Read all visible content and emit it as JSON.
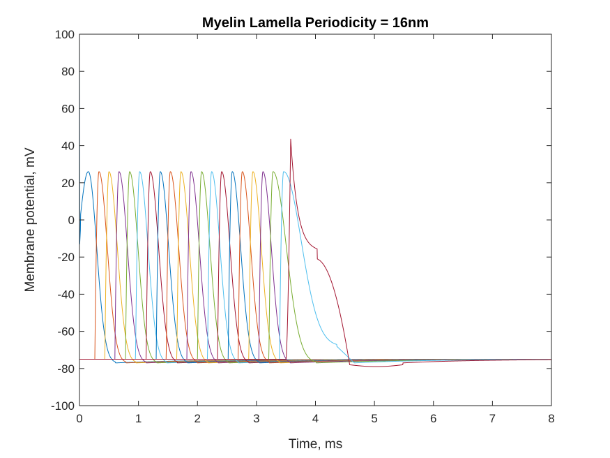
{
  "chart_data": {
    "type": "line",
    "title": "Myelin Lamella Periodicity = 16nm",
    "xlabel": "Time, ms",
    "ylabel": "Membrane potential, mV",
    "xlim": [
      0,
      8
    ],
    "ylim": [
      -100,
      100
    ],
    "xticks": [
      0,
      1,
      2,
      3,
      4,
      5,
      6,
      7,
      8
    ],
    "yticks": [
      -100,
      -80,
      -60,
      -40,
      -20,
      0,
      20,
      40,
      60,
      80,
      100
    ],
    "xtick_labels": [
      "0",
      "1",
      "2",
      "3",
      "4",
      "5",
      "6",
      "7",
      "8"
    ],
    "ytick_labels": [
      "-100",
      "-80",
      "-60",
      "-40",
      "-20",
      "0",
      "20",
      "40",
      "60",
      "80",
      "100"
    ],
    "grid": false,
    "legend": "none",
    "resting_potential": -75,
    "colors": [
      "#0072BD",
      "#D95319",
      "#EDB120",
      "#7E2F8E",
      "#77AC30",
      "#4DBEEE",
      "#A2142F"
    ],
    "series": [
      {
        "color": "#0072BD",
        "peak_time": 0.15,
        "peak": 26,
        "initial_spike": true
      },
      {
        "color": "#D95319",
        "peak_time": 0.33,
        "peak": 26
      },
      {
        "color": "#EDB120",
        "peak_time": 0.5,
        "peak": 26
      },
      {
        "color": "#7E2F8E",
        "peak_time": 0.67,
        "peak": 26
      },
      {
        "color": "#77AC30",
        "peak_time": 0.85,
        "peak": 26
      },
      {
        "color": "#4DBEEE",
        "peak_time": 1.02,
        "peak": 26
      },
      {
        "color": "#A2142F",
        "peak_time": 1.2,
        "peak": 26
      },
      {
        "color": "#0072BD",
        "peak_time": 1.37,
        "peak": 26
      },
      {
        "color": "#D95319",
        "peak_time": 1.54,
        "peak": 26
      },
      {
        "color": "#EDB120",
        "peak_time": 1.72,
        "peak": 26
      },
      {
        "color": "#7E2F8E",
        "peak_time": 1.89,
        "peak": 26
      },
      {
        "color": "#77AC30",
        "peak_time": 2.07,
        "peak": 26
      },
      {
        "color": "#4DBEEE",
        "peak_time": 2.24,
        "peak": 26
      },
      {
        "color": "#A2142F",
        "peak_time": 2.41,
        "peak": 26
      },
      {
        "color": "#0072BD",
        "peak_time": 2.59,
        "peak": 26
      },
      {
        "color": "#D95319",
        "peak_time": 2.76,
        "peak": 26
      },
      {
        "color": "#EDB120",
        "peak_time": 2.94,
        "peak": 26
      },
      {
        "color": "#7E2F8E",
        "peak_time": 3.11,
        "peak": 26
      },
      {
        "color": "#77AC30",
        "peak_time": 3.28,
        "peak": 26,
        "slow_tail": true
      },
      {
        "color": "#4DBEEE",
        "peak_time": 3.46,
        "peak": 26,
        "slow_tail": true,
        "plateau": -68
      },
      {
        "color": "#A2142F",
        "peak_time": 3.58,
        "peak": 43.5,
        "terminal": true,
        "shoulder": -17
      }
    ]
  }
}
